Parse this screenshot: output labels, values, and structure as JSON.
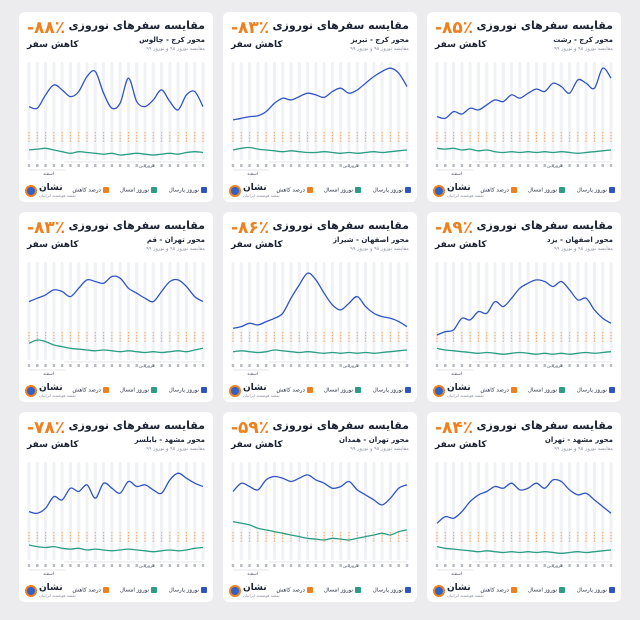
{
  "colors": {
    "accent": "#f07f1e",
    "last_year": "#2f54c4",
    "this_year": "#2a9d84",
    "reduction": "#f07f1e"
  },
  "cards": [
    {
      "percent": "-۸۵٪",
      "reduce_label": "کاهش سفر",
      "title": "مقایسه سفرهای نوروزی",
      "route": "محور کرج - رشت",
      "subtitle": "مقایسه نوروز ۹۸ و نوروز ۹۹",
      "month_right": "فروردین",
      "month_left": "اسفند",
      "legend": {
        "last_year": "نوروز پارسال",
        "this_year": "نوروز امسال",
        "reduction": "درصد کاهش"
      },
      "brand": "نشان",
      "tagline": "نقشه هوشمند ایرانیان",
      "chart_data": {
        "type": "line",
        "series": [
          {
            "values": [
              52,
              50,
              58,
              55,
              62,
              60,
              66,
              72,
              70,
              78,
              74,
              80,
              85,
              82,
              92,
              88,
              80,
              96,
              92,
              86,
              110,
              98
            ]
          },
          {
            "values": [
              14,
              13,
              14,
              12,
              13,
              11,
              12,
              10,
              9,
              10,
              9,
              10,
              9,
              10,
              9,
              10,
              9,
              8,
              9,
              10,
              11,
              12
            ]
          }
        ]
      }
    },
    {
      "percent": "-۸۳٪",
      "reduce_label": "کاهش سفر",
      "title": "مقایسه سفرهای نوروزی",
      "route": "محور کرج - تبریز",
      "subtitle": "مقایسه نوروز ۹۸ و نوروز ۹۹",
      "month_right": "فروردین",
      "month_left": "اسفند",
      "legend": {
        "last_year": "نوروز پارسال",
        "this_year": "نوروز امسال",
        "reduction": "درصد کاهش"
      },
      "brand": "نشان",
      "tagline": "نقشه هوشمند ایرانیان",
      "chart_data": {
        "type": "line",
        "series": [
          {
            "values": [
              48,
              50,
              52,
              53,
              58,
              68,
              74,
              72,
              76,
              80,
              78,
              75,
              82,
              86,
              80,
              84,
              92,
              100,
              106,
              110,
              104,
              88
            ]
          },
          {
            "values": [
              12,
              14,
              15,
              13,
              12,
              11,
              10,
              11,
              10,
              9,
              9,
              10,
              9,
              8,
              9,
              8,
              9,
              10,
              9,
              10,
              11,
              12
            ]
          }
        ]
      }
    },
    {
      "percent": "-۸۸٪",
      "reduce_label": "کاهش سفر",
      "title": "مقایسه سفرهای نوروزی",
      "route": "محور کرج - چالوس",
      "subtitle": "مقایسه نوروز ۹۸ و نوروز ۹۹",
      "month_right": "فروردین",
      "month_left": "اسفند",
      "legend": {
        "last_year": "نوروز پارسال",
        "this_year": "نوروز امسال",
        "reduction": "درصد کاهش"
      },
      "brand": "نشان",
      "tagline": "نقشه هوشمند ایرانیان",
      "chart_data": {
        "type": "line",
        "series": [
          {
            "values": [
              64,
              62,
              78,
              90,
              84,
              76,
              82,
              100,
              106,
              80,
              62,
              68,
              98,
              70,
              64,
              72,
              84,
              70,
              60,
              78,
              82,
              64
            ]
          },
          {
            "values": [
              12,
              13,
              14,
              12,
              10,
              8,
              10,
              9,
              8,
              7,
              8,
              6,
              7,
              8,
              7,
              6,
              7,
              8,
              7,
              9,
              10,
              9
            ]
          }
        ]
      }
    },
    {
      "percent": "-۸۹٪",
      "reduce_label": "کاهش سفر",
      "title": "مقایسه سفرهای نوروزی",
      "route": "محور اصفهان - یزد",
      "subtitle": "مقایسه نوروز ۹۸ و نوروز ۹۹",
      "month_right": "فروردین",
      "month_left": "اسفند",
      "legend": {
        "last_year": "نوروز پارسال",
        "this_year": "نوروز امسال",
        "reduction": "درصد کاهش"
      },
      "brand": "نشان",
      "tagline": "نقشه هوشمند ایرانیان",
      "chart_data": {
        "type": "line",
        "series": [
          {
            "values": [
              30,
              34,
              36,
              50,
              48,
              58,
              56,
              70,
              64,
              74,
              86,
              92,
              96,
              94,
              88,
              94,
              84,
              72,
              74,
              60,
              50,
              44
            ]
          },
          {
            "values": [
              14,
              12,
              11,
              10,
              9,
              8,
              9,
              8,
              7,
              8,
              9,
              8,
              7,
              8,
              7,
              8,
              7,
              8,
              9,
              8,
              9,
              10
            ]
          }
        ]
      }
    },
    {
      "percent": "-۸۶٪",
      "reduce_label": "کاهش سفر",
      "title": "مقایسه سفرهای نوروزی",
      "route": "محور اصفهان - شیراز",
      "subtitle": "مقایسه نوروز ۹۸ و نوروز ۹۹",
      "month_right": "فروردین",
      "month_left": "اسفند",
      "legend": {
        "last_year": "نوروز پارسال",
        "this_year": "نوروز امسال",
        "reduction": "درصد کاهش"
      },
      "brand": "نشان",
      "tagline": "نقشه هوشمند ایرانیان",
      "chart_data": {
        "type": "line",
        "series": [
          {
            "values": [
              38,
              40,
              44,
              42,
              46,
              50,
              56,
              74,
              90,
              104,
              96,
              80,
              66,
              60,
              68,
              76,
              64,
              56,
              52,
              50,
              46,
              40
            ]
          },
          {
            "values": [
              10,
              11,
              10,
              9,
              10,
              12,
              11,
              10,
              9,
              10,
              9,
              8,
              9,
              8,
              9,
              8,
              9,
              8,
              9,
              10,
              11,
              12
            ]
          }
        ]
      }
    },
    {
      "percent": "-۸۳٪",
      "reduce_label": "کاهش سفر",
      "title": "مقایسه سفرهای نوروزی",
      "route": "محور تهران - قم",
      "subtitle": "مقایسه نوروز ۹۸ و نوروز ۹۹",
      "month_right": "فروردین",
      "month_left": "اسفند",
      "legend": {
        "last_year": "نوروز پارسال",
        "this_year": "نوروز امسال",
        "reduction": "درصد کاهش"
      },
      "brand": "نشان",
      "tagline": "نقشه هوشمند ایرانیان",
      "chart_data": {
        "type": "line",
        "series": [
          {
            "values": [
              70,
              74,
              78,
              84,
              82,
              76,
              86,
              96,
              94,
              92,
              100,
              98,
              86,
              80,
              74,
              70,
              82,
              94,
              96,
              88,
              76,
              70
            ]
          },
          {
            "values": [
              20,
              24,
              22,
              18,
              16,
              14,
              13,
              12,
              11,
              12,
              11,
              10,
              11,
              10,
              9,
              10,
              9,
              10,
              11,
              10,
              12,
              14
            ]
          }
        ]
      }
    },
    {
      "percent": "-۸۴٪",
      "reduce_label": "کاهش سفر",
      "title": "مقایسه سفرهای نوروزی",
      "route": "محور مشهد - تهران",
      "subtitle": "مقایسه نوروز ۹۸ و نوروز ۹۹",
      "month_right": "فروردین",
      "month_left": "اسفند",
      "legend": {
        "last_year": "نوروز پارسال",
        "this_year": "نوروز امسال",
        "reduction": "درصد کاهش"
      },
      "brand": "نشان",
      "tagline": "نقشه هوشمند ایرانیان",
      "chart_data": {
        "type": "line",
        "series": [
          {
            "values": [
              44,
              52,
              50,
              58,
              70,
              78,
              82,
              88,
              86,
              92,
              84,
              86,
              92,
              86,
              96,
              94,
              84,
              78,
              80,
              72,
              64,
              56
            ]
          },
          {
            "values": [
              16,
              14,
              13,
              12,
              11,
              10,
              11,
              10,
              9,
              10,
              9,
              10,
              9,
              10,
              9,
              8,
              9,
              10,
              9,
              10,
              11,
              12
            ]
          }
        ]
      }
    },
    {
      "percent": "-۵۹٪",
      "reduce_label": "کاهش سفر",
      "title": "مقایسه سفرهای نوروزی",
      "route": "محور تهران - همدان",
      "subtitle": "مقایسه نوروز ۹۸ و نوروز ۹۹",
      "month_right": "فروردین",
      "month_left": "اسفند",
      "legend": {
        "last_year": "نوروز پارسال",
        "this_year": "نوروز امسال",
        "reduction": "درصد کاهش"
      },
      "brand": "نشان",
      "tagline": "نقشه هوشمند ایرانیان",
      "chart_data": {
        "type": "line",
        "series": [
          {
            "values": [
              82,
              92,
              88,
              84,
              96,
              100,
              98,
              94,
              98,
              102,
              96,
              92,
              86,
              88,
              94,
              84,
              78,
              72,
              66,
              74,
              86,
              90
            ]
          },
          {
            "values": [
              46,
              44,
              42,
              38,
              36,
              34,
              32,
              30,
              28,
              26,
              25,
              24,
              26,
              25,
              24,
              26,
              28,
              30,
              32,
              30,
              34,
              36
            ]
          }
        ]
      }
    },
    {
      "percent": "-۷۸٪",
      "reduce_label": "کاهش سفر",
      "title": "مقایسه سفرهای نوروزی",
      "route": "محور مشهد - بابلسر",
      "subtitle": "مقایسه نوروز ۹۸ و نوروز ۹۹",
      "month_right": "فروردین",
      "month_left": "اسفند",
      "legend": {
        "last_year": "نوروز پارسال",
        "this_year": "نوروز امسال",
        "reduction": "درصد کاهش"
      },
      "brand": "نشان",
      "tagline": "نقشه هوشمند ایرانیان",
      "chart_data": {
        "type": "line",
        "series": [
          {
            "values": [
              58,
              56,
              62,
              76,
              72,
              86,
              82,
              90,
              74,
              92,
              86,
              80,
              94,
              88,
              90,
              84,
              80,
              96,
              104,
              98,
              92,
              88
            ]
          },
          {
            "values": [
              18,
              16,
              15,
              16,
              14,
              13,
              14,
              12,
              13,
              12,
              11,
              12,
              13,
              12,
              11,
              10,
              11,
              12,
              11,
              12,
              14,
              15
            ]
          }
        ]
      }
    }
  ]
}
